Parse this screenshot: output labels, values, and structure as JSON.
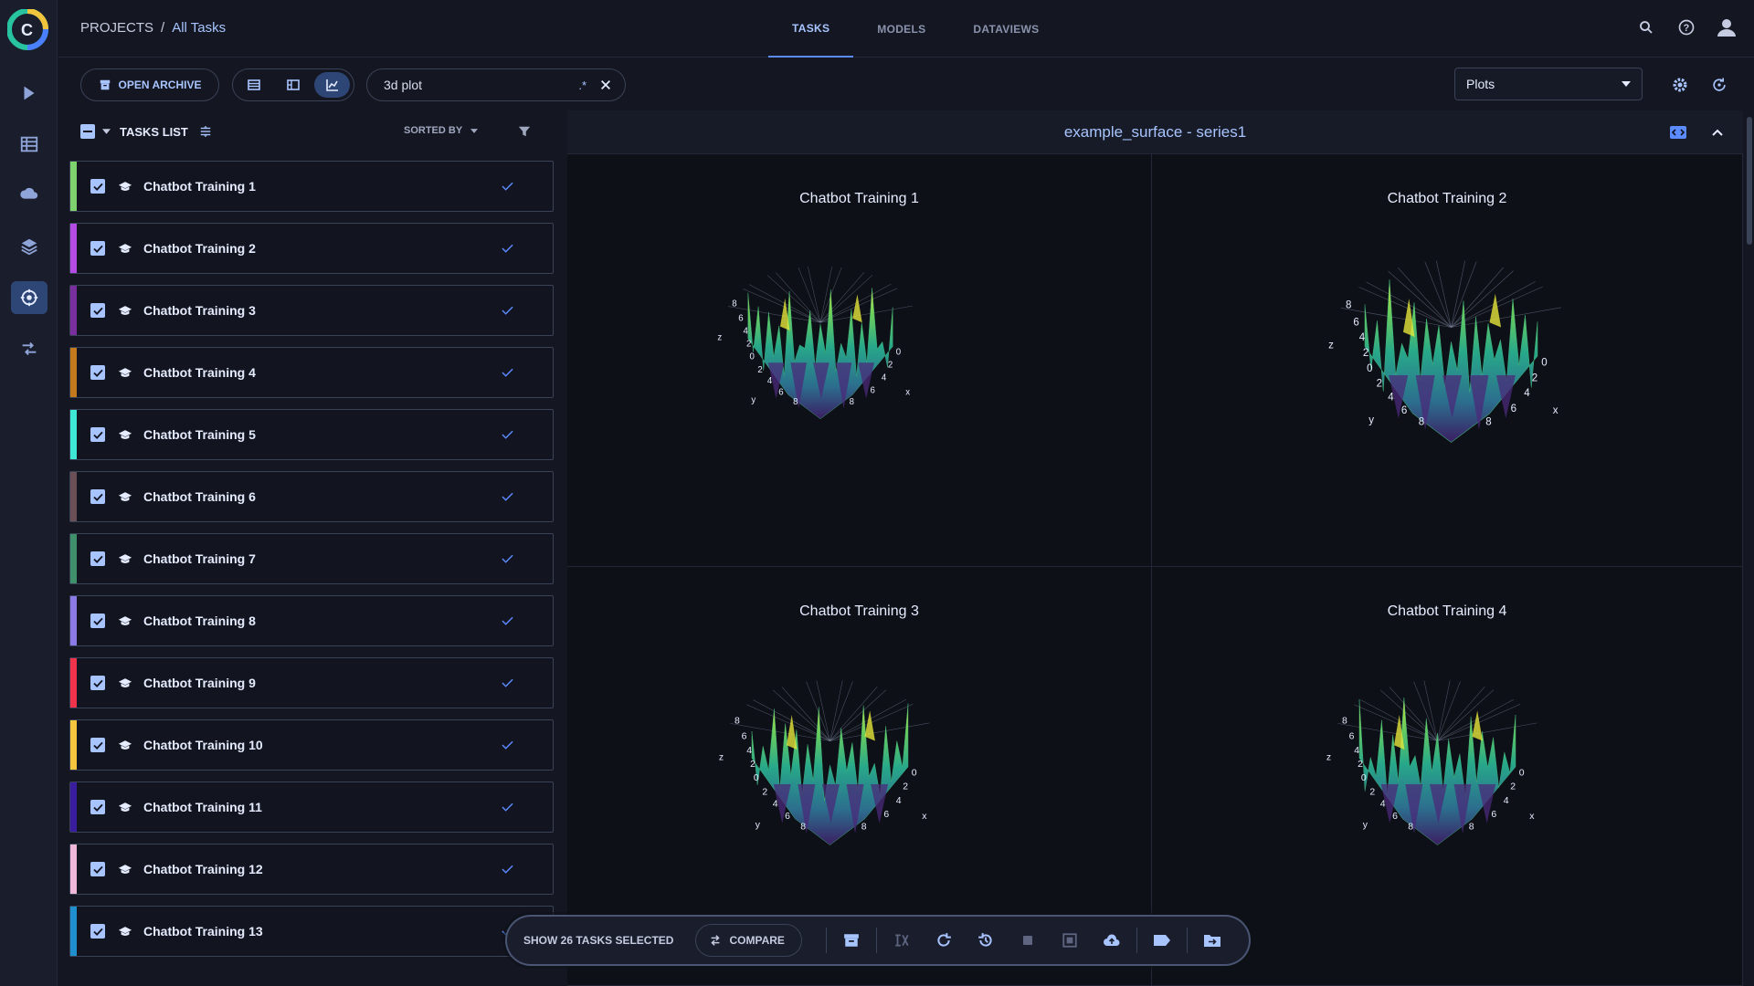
{
  "breadcrumb": {
    "root": "PROJECTS",
    "separator": "/",
    "current": "All Tasks"
  },
  "tabs": [
    {
      "label": "TASKS",
      "active": true
    },
    {
      "label": "MODELS",
      "active": false
    },
    {
      "label": "DATAVIEWS",
      "active": false
    }
  ],
  "toolbar": {
    "open_archive_label": "OPEN ARCHIVE",
    "search_value": "3d plot",
    "regex_label": ".*",
    "metric_select": "Plots"
  },
  "list": {
    "title": "TASKS LIST",
    "sorted_by": "SORTED BY",
    "tasks": [
      {
        "name": "Chatbot Training 1",
        "color": "#7ed36e"
      },
      {
        "name": "Chatbot Training 2",
        "color": "#b44be3"
      },
      {
        "name": "Chatbot Training 3",
        "color": "#7a2f9e"
      },
      {
        "name": "Chatbot Training 4",
        "color": "#c27a1c"
      },
      {
        "name": "Chatbot Training 5",
        "color": "#3ee8d5"
      },
      {
        "name": "Chatbot Training 6",
        "color": "#6b4f56"
      },
      {
        "name": "Chatbot Training 7",
        "color": "#3f8f6c"
      },
      {
        "name": "Chatbot Training 8",
        "color": "#8c7ae6"
      },
      {
        "name": "Chatbot Training 9",
        "color": "#f0324a"
      },
      {
        "name": "Chatbot Training 10",
        "color": "#f5c53d"
      },
      {
        "name": "Chatbot Training 11",
        "color": "#3a1d9e"
      },
      {
        "name": "Chatbot Training 12",
        "color": "#f0b8d8"
      },
      {
        "name": "Chatbot Training 13",
        "color": "#1f8fcf"
      }
    ]
  },
  "plot": {
    "header": "example_surface - series1",
    "charts": [
      {
        "title": "Chatbot Training 1"
      },
      {
        "title": "Chatbot Training 2"
      },
      {
        "title": "Chatbot Training 3"
      },
      {
        "title": "Chatbot Training 4"
      }
    ],
    "axis": {
      "x": "x",
      "y": "y",
      "z": "z"
    }
  },
  "actionbar": {
    "show_label": "SHOW 26 TASKS SELECTED",
    "compare_label": "COMPARE"
  }
}
